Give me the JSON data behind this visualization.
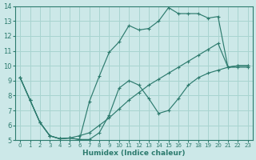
{
  "xlabel": "Humidex (Indice chaleur)",
  "bg_color": "#cce8e8",
  "grid_color": "#a8d4d0",
  "line_color": "#2d7b6e",
  "xlim": [
    -0.5,
    23.5
  ],
  "ylim": [
    5,
    14
  ],
  "xticks": [
    0,
    1,
    2,
    3,
    4,
    5,
    6,
    7,
    8,
    9,
    10,
    11,
    12,
    13,
    14,
    15,
    16,
    17,
    18,
    19,
    20,
    21,
    22,
    23
  ],
  "yticks": [
    5,
    6,
    7,
    8,
    9,
    10,
    11,
    12,
    13,
    14
  ],
  "line1_x": [
    0,
    1,
    2,
    3,
    4,
    5,
    6,
    7,
    8,
    9,
    10,
    11,
    12,
    13,
    14,
    15,
    16,
    17,
    18,
    19,
    20,
    21,
    22,
    23
  ],
  "line1_y": [
    9.2,
    7.7,
    6.2,
    5.3,
    5.1,
    5.15,
    5.05,
    5.05,
    5.5,
    6.7,
    8.5,
    9.0,
    8.7,
    7.8,
    6.8,
    7.0,
    7.8,
    8.7,
    9.2,
    9.5,
    9.7,
    9.9,
    9.9,
    9.9
  ],
  "line2_x": [
    0,
    1,
    2,
    3,
    4,
    5,
    6,
    7,
    8,
    9,
    10,
    11,
    12,
    13,
    14,
    15,
    16,
    17,
    18,
    19,
    20,
    21,
    22,
    23
  ],
  "line2_y": [
    9.2,
    7.7,
    6.2,
    5.3,
    5.1,
    5.15,
    5.05,
    7.6,
    9.3,
    10.9,
    11.6,
    12.7,
    12.4,
    12.5,
    13.0,
    13.9,
    13.5,
    13.5,
    13.5,
    13.2,
    13.3,
    9.9,
    10.0,
    10.0
  ],
  "line3_x": [
    0,
    1,
    2,
    3,
    4,
    5,
    6,
    7,
    8,
    9,
    10,
    11,
    12,
    13,
    14,
    15,
    16,
    17,
    18,
    19,
    20,
    21,
    22,
    23
  ],
  "line3_y": [
    9.2,
    7.7,
    6.2,
    5.3,
    5.1,
    5.15,
    5.3,
    5.5,
    6.0,
    6.5,
    7.1,
    7.7,
    8.2,
    8.7,
    9.1,
    9.5,
    9.9,
    10.3,
    10.7,
    11.1,
    11.5,
    9.9,
    10.0,
    10.0
  ]
}
